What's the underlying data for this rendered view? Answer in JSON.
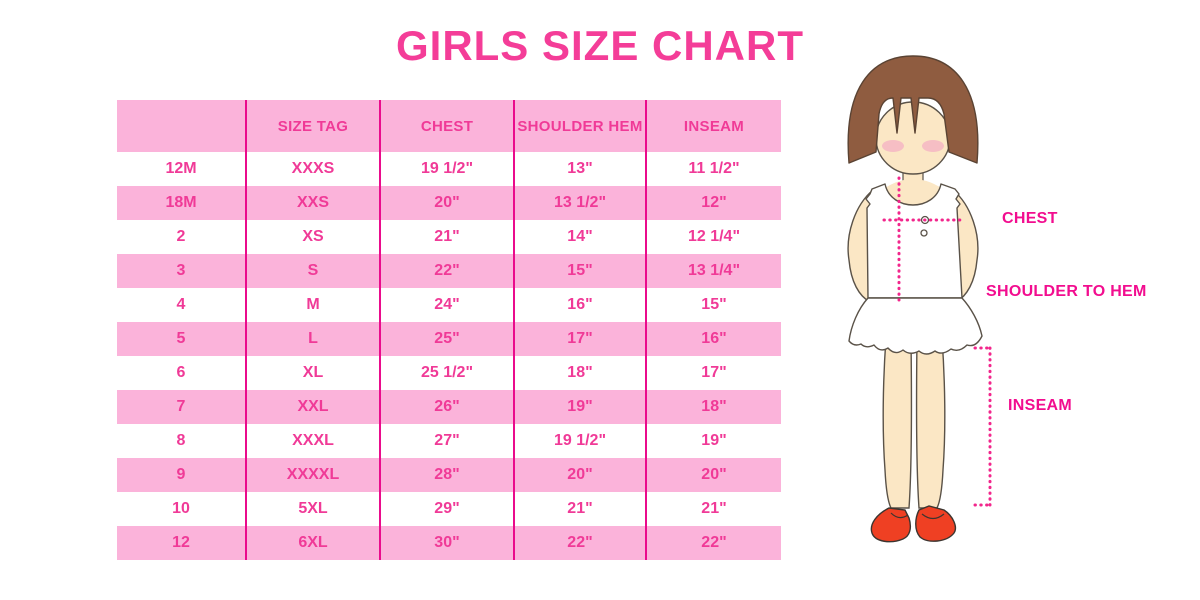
{
  "title": "GIRLS SIZE CHART",
  "colors": {
    "title_pink": "#F43D98",
    "row_pink": "#FBB3DA",
    "row_white": "#FFFFFF",
    "divider_magenta": "#EA0B8C",
    "cell_text_pink": "#F03A97",
    "label_magenta": "#F20D8F",
    "measure_dot_line": "#F2268C",
    "hair_brown": "#8F5C40",
    "skin": "#FBE7C5",
    "shoe_red": "#EF4023"
  },
  "chart_data": {
    "type": "table",
    "title": "GIRLS SIZE CHART",
    "columns": [
      "",
      "SIZE TAG",
      "CHEST",
      "SHOULDER HEM",
      "INSEAM"
    ],
    "rows": [
      [
        "12M",
        "XXXS",
        "19 1/2\"",
        "13\"",
        "11 1/2\""
      ],
      [
        "18M",
        "XXS",
        "20\"",
        "13 1/2\"",
        "12\""
      ],
      [
        "2",
        "XS",
        "21\"",
        "14\"",
        "12 1/4\""
      ],
      [
        "3",
        "S",
        "22\"",
        "15\"",
        "13 1/4\""
      ],
      [
        "4",
        "M",
        "24\"",
        "16\"",
        "15\""
      ],
      [
        "5",
        "L",
        "25\"",
        "17\"",
        "16\""
      ],
      [
        "6",
        "XL",
        "25 1/2\"",
        "18\"",
        "17\""
      ],
      [
        "7",
        "XXL",
        "26\"",
        "19\"",
        "18\""
      ],
      [
        "8",
        "XXXL",
        "27\"",
        "19 1/2\"",
        "19\""
      ],
      [
        "9",
        "XXXXL",
        "28\"",
        "20\"",
        "20\""
      ],
      [
        "10",
        "5XL",
        "29\"",
        "21\"",
        "21\""
      ],
      [
        "12",
        "6XL",
        "30\"",
        "22\"",
        "22\""
      ]
    ],
    "row_stripe_order": [
      "white",
      "pink"
    ],
    "header_background": "#FBB3DA",
    "grid": "vertical-dividers-only"
  },
  "diagram_labels": {
    "chest": "CHEST",
    "shoulder_to_hem": "SHOULDER TO HEM",
    "inseam": "INSEAM"
  }
}
